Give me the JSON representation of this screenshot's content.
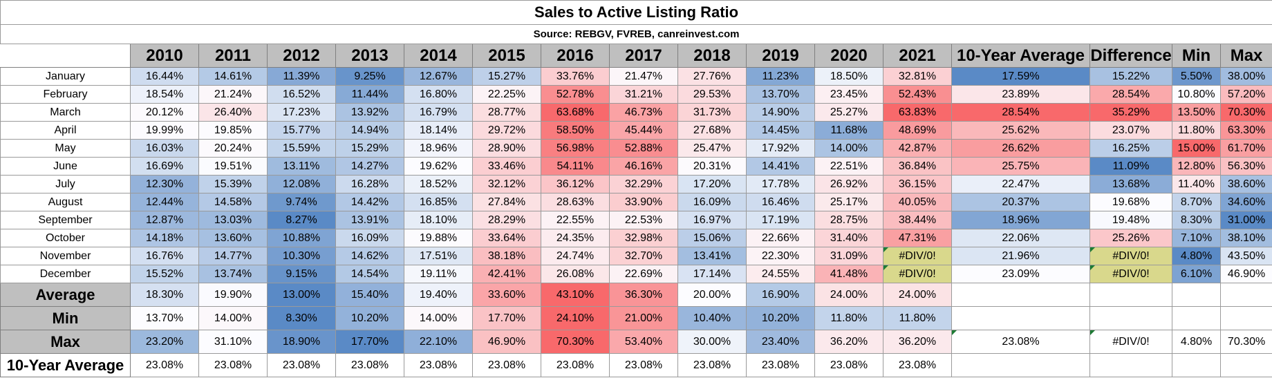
{
  "title": "Sales to Active Listing Ratio",
  "source": "Source: REBGV, FVREB, canreinvest.com",
  "headers": [
    "2010",
    "2011",
    "2012",
    "2013",
    "2014",
    "2015",
    "2016",
    "2017",
    "2018",
    "2019",
    "2020",
    "2021",
    "10-Year Average",
    "Difference",
    "Min",
    "Max"
  ],
  "rows": [
    {
      "label": "January",
      "cells": [
        "16.44%",
        "14.61%",
        "11.39%",
        "9.25%",
        "12.67%",
        "15.27%",
        "33.76%",
        "21.47%",
        "27.76%",
        "11.23%",
        "18.50%",
        "32.81%",
        "17.59%",
        "15.22%",
        "5.50%",
        "38.00%"
      ]
    },
    {
      "label": "February",
      "cells": [
        "18.54%",
        "21.24%",
        "16.52%",
        "11.44%",
        "16.80%",
        "22.25%",
        "52.78%",
        "31.21%",
        "29.53%",
        "13.70%",
        "23.45%",
        "52.43%",
        "23.89%",
        "28.54%",
        "10.80%",
        "57.20%"
      ]
    },
    {
      "label": "March",
      "cells": [
        "20.12%",
        "26.40%",
        "17.23%",
        "13.92%",
        "16.79%",
        "28.77%",
        "63.68%",
        "46.73%",
        "31.73%",
        "14.90%",
        "25.27%",
        "63.83%",
        "28.54%",
        "35.29%",
        "13.50%",
        "70.30%"
      ]
    },
    {
      "label": "April",
      "cells": [
        "19.99%",
        "19.85%",
        "15.77%",
        "14.94%",
        "18.14%",
        "29.72%",
        "58.50%",
        "45.44%",
        "27.68%",
        "14.45%",
        "11.68%",
        "48.69%",
        "25.62%",
        "23.07%",
        "11.80%",
        "63.30%"
      ]
    },
    {
      "label": "May",
      "cells": [
        "16.03%",
        "20.24%",
        "15.59%",
        "15.29%",
        "18.96%",
        "28.90%",
        "56.98%",
        "52.88%",
        "25.47%",
        "17.92%",
        "14.00%",
        "42.87%",
        "26.62%",
        "16.25%",
        "15.00%",
        "61.70%"
      ]
    },
    {
      "label": "June",
      "cells": [
        "16.69%",
        "19.51%",
        "13.11%",
        "14.27%",
        "19.62%",
        "33.46%",
        "54.11%",
        "46.16%",
        "20.31%",
        "14.41%",
        "22.51%",
        "36.84%",
        "25.75%",
        "11.09%",
        "12.80%",
        "56.30%"
      ]
    },
    {
      "label": "July",
      "cells": [
        "12.30%",
        "15.39%",
        "12.08%",
        "16.28%",
        "18.52%",
        "32.12%",
        "36.12%",
        "32.29%",
        "17.20%",
        "17.78%",
        "26.92%",
        "36.15%",
        "22.47%",
        "13.68%",
        "11.40%",
        "38.60%"
      ]
    },
    {
      "label": "August",
      "cells": [
        "12.44%",
        "14.58%",
        "9.74%",
        "14.42%",
        "16.85%",
        "27.84%",
        "28.63%",
        "33.90%",
        "16.09%",
        "16.46%",
        "25.17%",
        "40.05%",
        "20.37%",
        "19.68%",
        "8.70%",
        "34.60%"
      ]
    },
    {
      "label": "September",
      "cells": [
        "12.87%",
        "13.03%",
        "8.27%",
        "13.91%",
        "18.10%",
        "28.29%",
        "22.55%",
        "22.53%",
        "16.97%",
        "17.19%",
        "28.75%",
        "38.44%",
        "18.96%",
        "19.48%",
        "8.30%",
        "31.00%"
      ]
    },
    {
      "label": "October",
      "cells": [
        "14.18%",
        "13.60%",
        "10.88%",
        "16.09%",
        "19.88%",
        "33.64%",
        "24.35%",
        "32.98%",
        "15.06%",
        "22.66%",
        "31.40%",
        "47.31%",
        "22.06%",
        "25.26%",
        "7.10%",
        "38.10%"
      ]
    },
    {
      "label": "November",
      "cells": [
        "16.76%",
        "14.77%",
        "10.30%",
        "14.62%",
        "17.51%",
        "38.18%",
        "24.74%",
        "32.70%",
        "13.41%",
        "22.30%",
        "31.09%",
        "#DIV/0!",
        "21.96%",
        "#DIV/0!",
        "4.80%",
        "43.50%"
      ]
    },
    {
      "label": "December",
      "cells": [
        "15.52%",
        "13.74%",
        "9.15%",
        "14.54%",
        "19.11%",
        "42.41%",
        "26.08%",
        "22.69%",
        "17.14%",
        "24.55%",
        "41.48%",
        "#DIV/0!",
        "23.09%",
        "#DIV/0!",
        "6.10%",
        "46.90%"
      ]
    }
  ],
  "summary": [
    {
      "label": "Average",
      "cells": [
        "18.30%",
        "19.90%",
        "13.00%",
        "15.40%",
        "19.40%",
        "33.60%",
        "43.10%",
        "36.30%",
        "20.00%",
        "16.90%",
        "24.00%",
        "24.00%",
        "",
        "",
        "",
        ""
      ]
    },
    {
      "label": "Min",
      "cells": [
        "13.70%",
        "14.00%",
        "8.30%",
        "10.20%",
        "14.00%",
        "17.70%",
        "24.10%",
        "21.00%",
        "10.40%",
        "10.20%",
        "11.80%",
        "11.80%",
        "",
        "",
        "",
        ""
      ]
    },
    {
      "label": "Max",
      "cells": [
        "23.20%",
        "31.10%",
        "18.90%",
        "17.70%",
        "22.10%",
        "46.90%",
        "70.30%",
        "53.40%",
        "30.00%",
        "23.40%",
        "36.20%",
        "36.20%",
        "23.08%",
        "#DIV/0!",
        "4.80%",
        "70.30%"
      ]
    },
    {
      "label": "10-Year Average",
      "cells": [
        "23.08%",
        "23.08%",
        "23.08%",
        "23.08%",
        "23.08%",
        "23.08%",
        "23.08%",
        "23.08%",
        "23.08%",
        "23.08%",
        "23.08%",
        "23.08%",
        "",
        "",
        "",
        ""
      ]
    }
  ],
  "colors": {
    "header_gray": "#bfbfbf",
    "scale_blue": "#5a8ac6",
    "scale_white": "#fcfcff",
    "scale_red": "#f8696b",
    "error_yellow": "#d9d88c",
    "error_marker": "#1e7b34"
  }
}
